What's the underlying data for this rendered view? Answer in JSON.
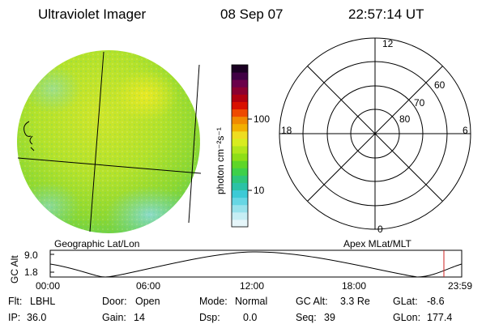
{
  "header": {
    "instrument": "Ultraviolet Imager",
    "date": "08 Sep 07",
    "time": "22:57:14 UT"
  },
  "colorbar": {
    "label": "photon cm⁻²s⁻¹",
    "ticks": [
      "100",
      "10"
    ],
    "colors": [
      "#1a0022",
      "#400044",
      "#6b004a",
      "#8b0030",
      "#b00010",
      "#d81000",
      "#ee4a00",
      "#f08a00",
      "#f2b000",
      "#eedd20",
      "#d8ec20",
      "#b2e61c",
      "#8ede18",
      "#5ed628",
      "#3ed04a",
      "#2ec67a",
      "#2cc2a6",
      "#3ccad6",
      "#66d6e4",
      "#98e2ec",
      "#c6eef4",
      "#e6f6fa"
    ]
  },
  "left_panel": {
    "caption": "Geographic Lat/Lon"
  },
  "polar_plot": {
    "caption": "Apex MLat/MLT",
    "mlt_labels": {
      "top": "12",
      "bottom": "0",
      "left": "18",
      "right": "6"
    },
    "lat_labels": [
      "60",
      "70",
      "80"
    ]
  },
  "altitude_plot": {
    "ylabel": "GC Alt",
    "y_ticks": [
      "9.0",
      "1.8"
    ],
    "x_ticks": [
      "00:00",
      "06:00",
      "12:00",
      "18:00",
      "23:59"
    ],
    "marker_color": "#cc2222"
  },
  "status": {
    "filter_label": "Flt:",
    "filter": "LBHL",
    "ip_label": "IP:",
    "ip": "36.0",
    "door_label": "Door:",
    "door": "Open",
    "gain_label": "Gain:",
    "gain": "14",
    "mode_label": "Mode:",
    "mode": "Normal",
    "dsp_label": "Dsp:",
    "dsp": "0.0",
    "gcalt_label": "GC Alt:",
    "gcalt": "3.3 Re",
    "seq_label": "Seq:",
    "seq": "39",
    "glat_label": "GLat:",
    "glat": "-8.6",
    "glon_label": "GLon:",
    "glon": "177.4"
  }
}
